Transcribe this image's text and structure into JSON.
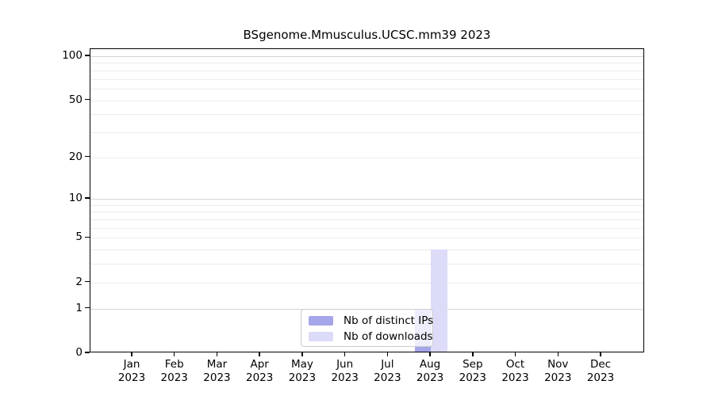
{
  "title": "BSgenome.Mmusculus.UCSC.mm39 2023",
  "colors": {
    "distinct_ips": "#a5a5ea",
    "downloads": "#dcdcf8",
    "grid_minor": "#ececec",
    "grid_major": "#d4d4d4",
    "axis": "#000000",
    "legend_border": "#cccccc"
  },
  "chart_data": {
    "type": "bar",
    "title": "BSgenome.Mmusculus.UCSC.mm39 2023",
    "categories": [
      "Jan",
      "Feb",
      "Mar",
      "Apr",
      "May",
      "Jun",
      "Jul",
      "Aug",
      "Sep",
      "Oct",
      "Nov",
      "Dec"
    ],
    "category_year": "2023",
    "series": [
      {
        "name": "Nb of distinct IPs",
        "color": "#a5a5ea",
        "values": [
          0,
          0,
          0,
          0,
          0,
          0,
          0,
          1,
          0,
          0,
          0,
          0
        ]
      },
      {
        "name": "Nb of downloads",
        "color": "#dcdcf8",
        "values": [
          0,
          0,
          0,
          0,
          0,
          0,
          0,
          4,
          0,
          0,
          0,
          0
        ]
      }
    ],
    "xlabel": "",
    "ylabel": "",
    "yscale": "log1p",
    "ytick_values": [
      0,
      1,
      2,
      5,
      10,
      20,
      50,
      100
    ],
    "ytick_labels": [
      "0",
      "1",
      "2",
      "5",
      "10",
      "20",
      "50",
      "100"
    ],
    "grid_values": [
      1,
      2,
      3,
      4,
      5,
      6,
      7,
      8,
      9,
      10,
      20,
      30,
      40,
      50,
      60,
      70,
      80,
      90,
      100
    ],
    "grid_major_values": [
      1,
      10,
      100
    ],
    "ylim": [
      0,
      110
    ],
    "grid": true,
    "legend_position": "bottom-center"
  }
}
